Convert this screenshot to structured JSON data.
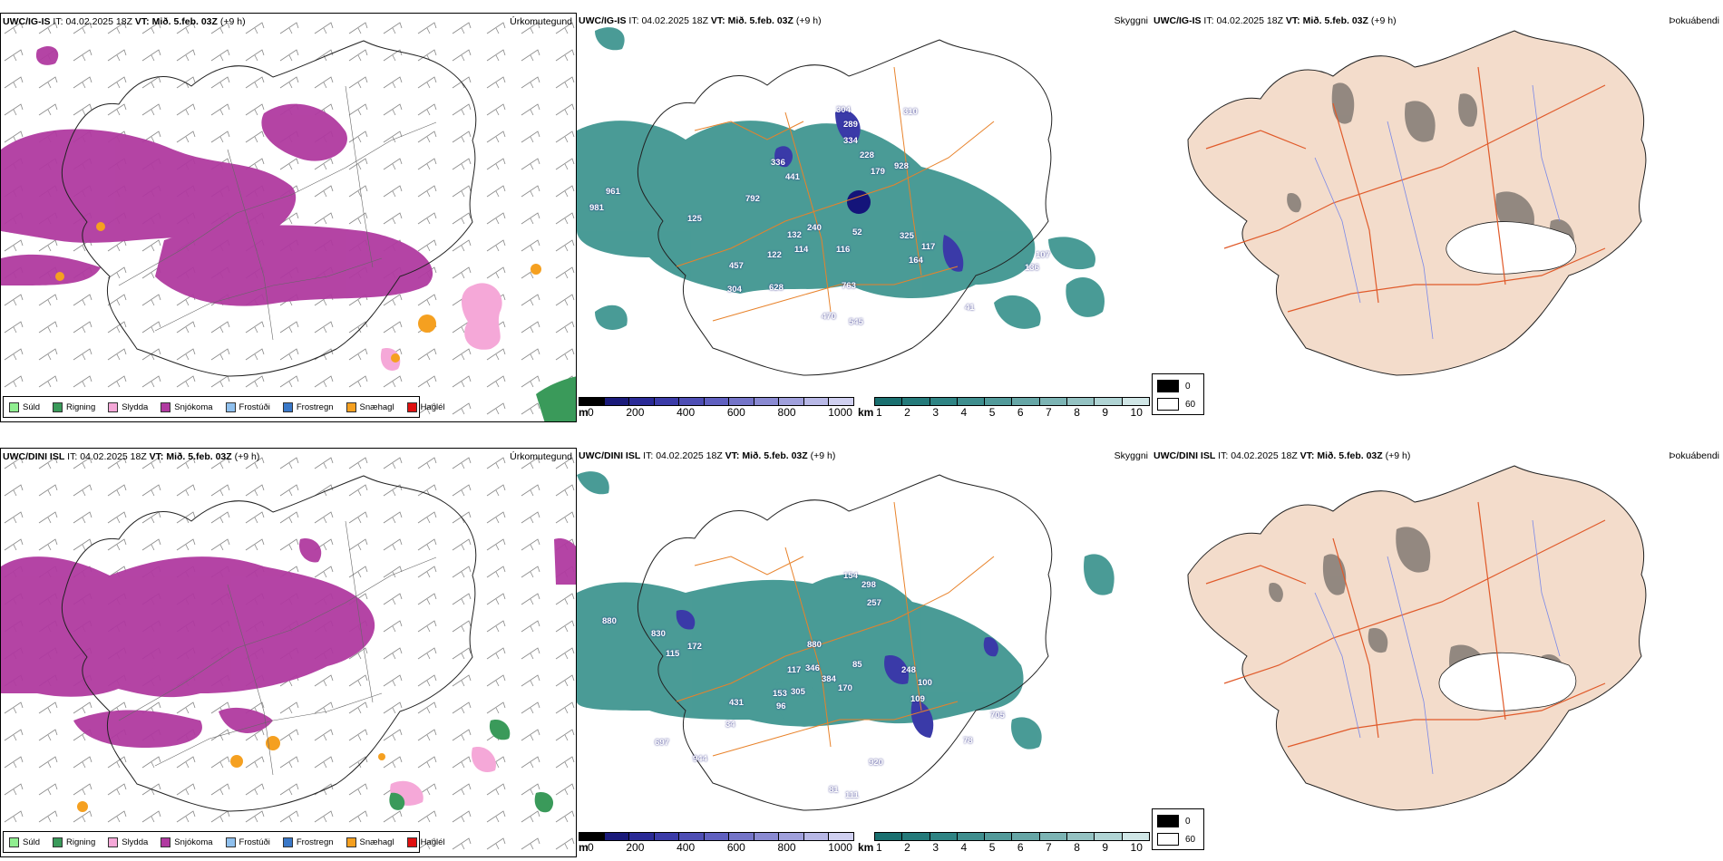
{
  "rows": [
    {
      "model": "UWC/IG-IS",
      "model_mid": "UWC/IG-IS",
      "model_right": "UWC/IG-IS",
      "it_label": "IT:",
      "it_value": "04.02.2025 18Z",
      "vt_label": "VT:",
      "vt_value": "Mið. 5.feb. 03Z",
      "lead": "(+9 h)",
      "cloud_numbers": [
        "304",
        "310",
        "289",
        "334",
        "228",
        "179",
        "928",
        "336",
        "441",
        "961",
        "981",
        "125",
        "792",
        "240",
        "52",
        "325",
        "117",
        "132",
        "122",
        "114",
        "116",
        "164",
        "107",
        "136",
        "457",
        "304",
        "628",
        "763",
        "41",
        "470",
        "545"
      ]
    },
    {
      "model": "UWC/DINI ISL",
      "model_mid": "UWC/DINI ISL",
      "model_right": "UWC/DINI ISL",
      "it_label": "IT:",
      "it_value": "04.02.2025 18Z",
      "vt_label": "VT:",
      "vt_value": "Mið. 5.feb. 03Z",
      "lead": "(+9 h)",
      "cloud_numbers": [
        "154",
        "298",
        "257",
        "880",
        "830",
        "172",
        "115",
        "880",
        "85",
        "117",
        "346",
        "384",
        "170",
        "248",
        "100",
        "109",
        "153",
        "305",
        "96",
        "431",
        "34",
        "705",
        "78",
        "697",
        "944",
        "920",
        "81",
        "111"
      ]
    }
  ],
  "panel_titles": {
    "precip": "Úrkomutegund",
    "cloud": "Skyggni",
    "fog": "Þokuábendi"
  },
  "precip_legend": [
    {
      "label": "Súld",
      "color": "#90ee90"
    },
    {
      "label": "Rigning",
      "color": "#3a9a5a"
    },
    {
      "label": "Slydda",
      "color": "#f5a8d8"
    },
    {
      "label": "Snjókoma",
      "color": "#b03aa0"
    },
    {
      "label": "Frostúði",
      "color": "#8fc0ee"
    },
    {
      "label": "Frostregn",
      "color": "#3a78c8"
    },
    {
      "label": "Snæhagl",
      "color": "#f5a020"
    },
    {
      "label": "Haglél",
      "color": "#e01010"
    }
  ],
  "cloudbase_bar": {
    "unit": "m",
    "ticks": [
      "0",
      "200",
      "400",
      "600",
      "800",
      "1000"
    ],
    "colors": [
      "#000000",
      "#1a1a7a",
      "#2a2a96",
      "#3b3ba8",
      "#4e4eb4",
      "#6060c0",
      "#7474c8",
      "#8a8ad2",
      "#a0a0dc",
      "#b8b8e6",
      "#d0d0f0"
    ]
  },
  "visibility_bar": {
    "unit": "km",
    "ticks": [
      "1",
      "2",
      "3",
      "4",
      "5",
      "6",
      "7",
      "8",
      "9",
      "10"
    ],
    "colors": [
      "#1a7070",
      "#247a7a",
      "#2f8484",
      "#3f8e8e",
      "#529a9a",
      "#66a6a6",
      "#7cb4b4",
      "#94c2c2",
      "#b0d4d4",
      "#d0e6e6"
    ]
  },
  "fog_key": [
    {
      "label": "0",
      "color": "#000000"
    },
    {
      "label": "60",
      "color": "#ffffff"
    }
  ],
  "colors": {
    "snow": "#b03aa0",
    "sleet": "#f5a8d8",
    "graupel": "#f5a020",
    "rain": "#3a9a5a",
    "teal": "#2a8a84",
    "cloudlow": "#3a3aa8",
    "land": "#f3dccb",
    "roads": "#e86a2a",
    "rivers": "#7a88e8"
  }
}
